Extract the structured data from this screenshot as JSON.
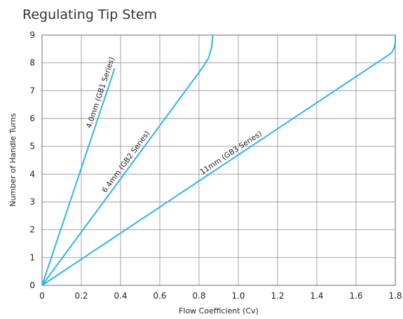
{
  "chart_data": {
    "type": "line",
    "title": "Regulating Tip Stem",
    "xlabel": "Flow Coefficient (Cv)",
    "ylabel": "Number of Handle Turns",
    "xlim": [
      0,
      1.8
    ],
    "ylim": [
      0,
      9
    ],
    "x_ticks": [
      "0",
      "0.2",
      "0.4",
      "0.6",
      "0.8",
      "1.0",
      "1.2",
      "1.4",
      "1.6",
      "1.8"
    ],
    "y_ticks": [
      "0",
      "1",
      "2",
      "3",
      "4",
      "5",
      "6",
      "7",
      "8",
      "9"
    ],
    "grid": true,
    "series_color": "#2bb6e6",
    "series": [
      {
        "name": "4.0mm (GB1 Series)",
        "x": [
          0,
          0.37
        ],
        "y": [
          0,
          7.8
        ]
      },
      {
        "name": "6.4mm (GB2 Series)",
        "x": [
          0,
          0.82,
          0.85,
          0.865,
          0.87
        ],
        "y": [
          0,
          7.85,
          8.2,
          8.6,
          9
        ]
      },
      {
        "name": "11mm (GB3 Series)",
        "x": [
          0,
          1.78,
          1.795,
          1.8,
          1.8
        ],
        "y": [
          0,
          8.35,
          8.55,
          8.75,
          9
        ]
      }
    ]
  }
}
